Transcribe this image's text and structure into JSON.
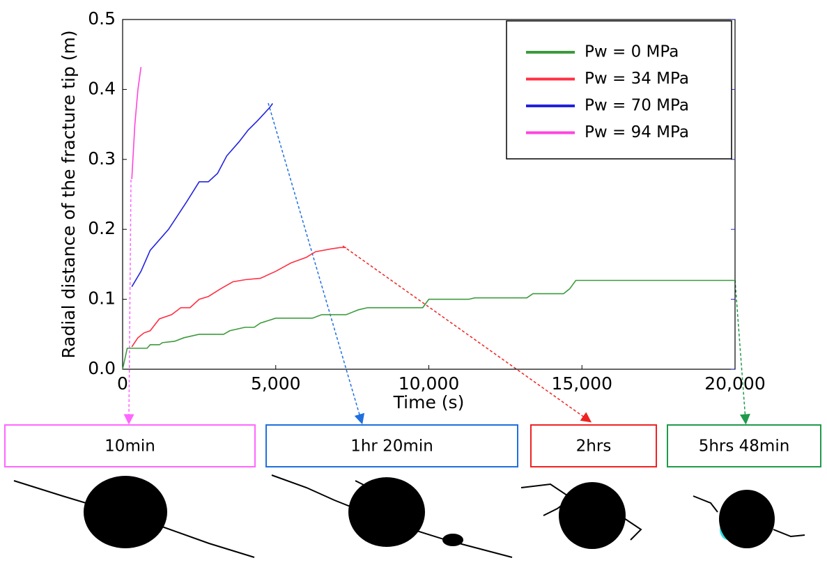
{
  "chart_data": {
    "type": "line",
    "y_label": "Radial distance of the fracture tip (m)",
    "x_label": "Time (s)",
    "xlim": [
      0,
      20000
    ],
    "ylim": [
      0,
      0.5
    ],
    "xticks": [
      0,
      {
        "value": 5000,
        "label": "5,000"
      },
      {
        "value": 10000,
        "label": "10,000"
      },
      {
        "value": 15000,
        "label": "15,000"
      },
      {
        "value": 20000,
        "label": "20,000"
      }
    ],
    "yticks": [
      {
        "value": 0,
        "label": "0.0"
      },
      0.1,
      0.2,
      0.3,
      0.4,
      0.5
    ],
    "legend": "upper right",
    "series": [
      {
        "name": "Pw  =  0 MPa",
        "color": "#3c9a3c",
        "x": [
          0,
          150,
          800,
          900,
          1200,
          1300,
          1700,
          2000,
          2500,
          3300,
          3500,
          4000,
          4300,
          4500,
          5000,
          6200,
          6500,
          7300,
          7700,
          8000,
          9800,
          10000,
          11300,
          11500,
          13200,
          13400,
          14400,
          14600,
          14800,
          20000
        ],
        "values": [
          0,
          0.03,
          0.03,
          0.035,
          0.035,
          0.038,
          0.04,
          0.045,
          0.05,
          0.05,
          0.055,
          0.06,
          0.06,
          0.066,
          0.073,
          0.073,
          0.078,
          0.078,
          0.085,
          0.088,
          0.088,
          0.1,
          0.1,
          0.102,
          0.102,
          0.108,
          0.108,
          0.115,
          0.127,
          0.127
        ]
      },
      {
        "name": "Pw = 34 MPa",
        "color": "#ff3044",
        "x": [
          300,
          500,
          700,
          900,
          1200,
          1600,
          1900,
          2200,
          2500,
          2800,
          3200,
          3600,
          4000,
          4500,
          5000,
          5500,
          6000,
          6300,
          6800,
          7100,
          7300
        ],
        "values": [
          0.032,
          0.045,
          0.052,
          0.055,
          0.072,
          0.078,
          0.088,
          0.088,
          0.1,
          0.104,
          0.115,
          0.125,
          0.128,
          0.13,
          0.14,
          0.152,
          0.16,
          0.168,
          0.172,
          0.174,
          0.174
        ]
      },
      {
        "name": "Pw = 70 MPa",
        "color": "#2222dd",
        "x": [
          300,
          600,
          900,
          1500,
          2100,
          2500,
          2800,
          3100,
          3400,
          3800,
          4100,
          4400,
          4800,
          4900
        ],
        "values": [
          0.118,
          0.14,
          0.17,
          0.2,
          0.24,
          0.268,
          0.268,
          0.28,
          0.305,
          0.325,
          0.342,
          0.355,
          0.374,
          0.38
        ]
      },
      {
        "name": "Pw = 94 MPa",
        "color": "#ff44dd",
        "x": [
          300,
          400,
          500,
          600
        ],
        "values": [
          0.272,
          0.35,
          0.4,
          0.432
        ]
      }
    ],
    "annotations": [
      {
        "label": "10min",
        "color": "#ff66ff"
      },
      {
        "label": "1hr 20min",
        "color": "#1f6fdf"
      },
      {
        "label": "2hrs",
        "color": "#ee2222"
      },
      {
        "label": "5hrs 48min",
        "color": "#1f9a4a"
      }
    ]
  }
}
